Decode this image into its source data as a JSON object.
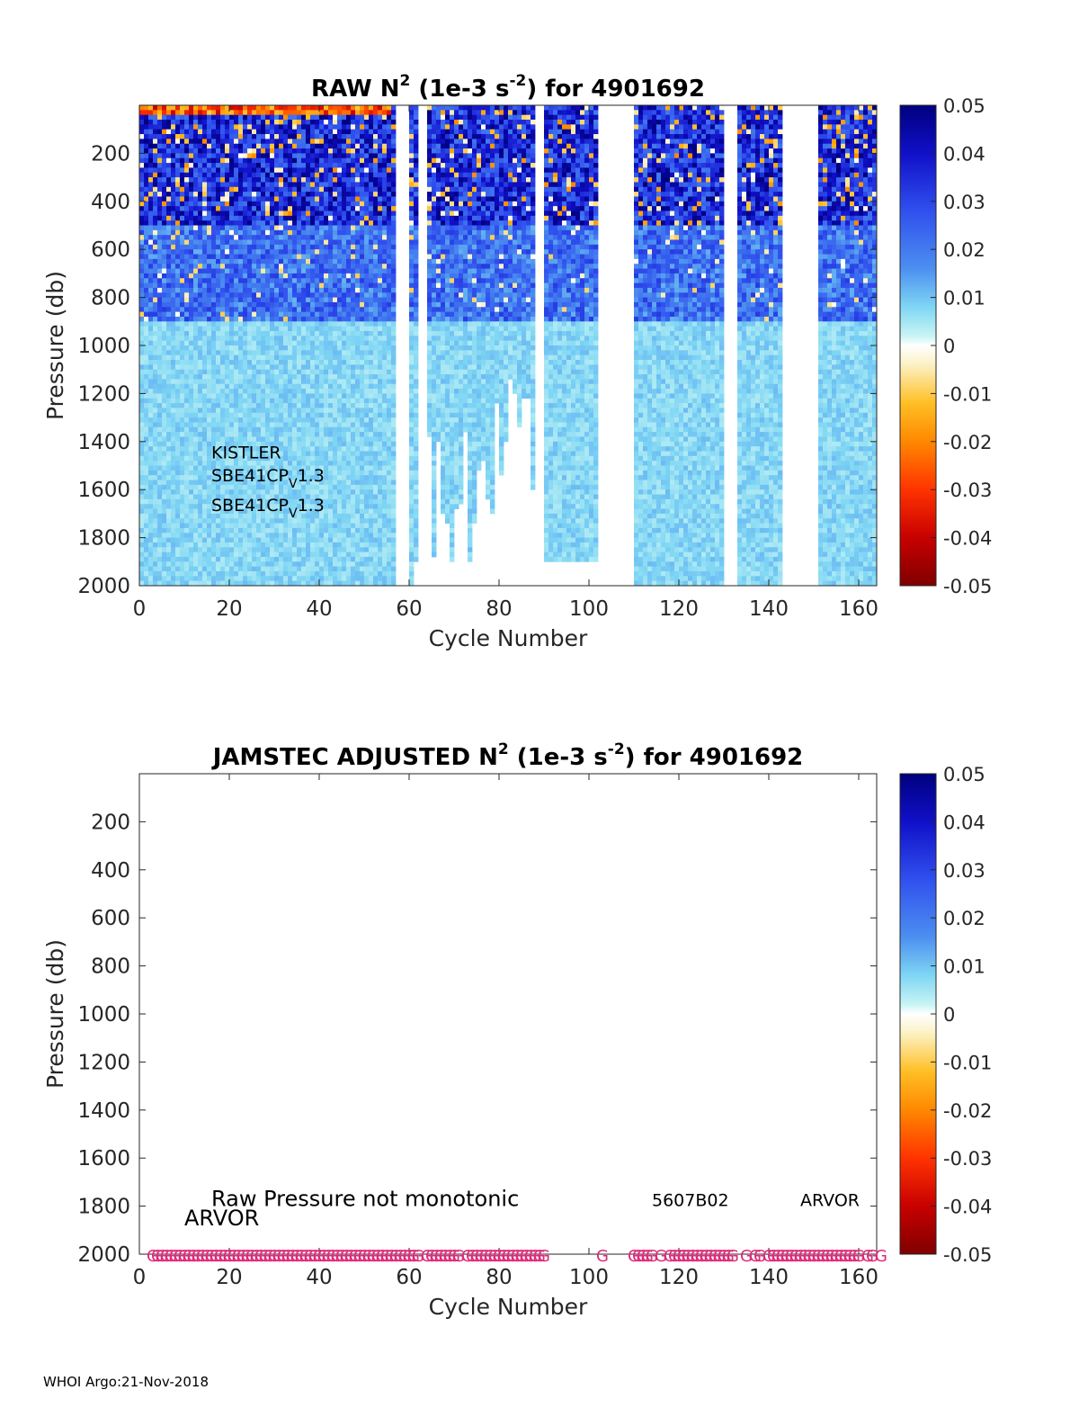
{
  "footer": "WHOI Argo:21-Nov-2018",
  "colorbar": {
    "ticks": [
      "0.05",
      "0.04",
      "0.03",
      "0.02",
      "0.01",
      "0",
      "-0.01",
      "-0.02",
      "-0.03",
      "-0.04",
      "-0.05"
    ],
    "range": [
      -0.05,
      0.05
    ]
  },
  "chart_data": [
    {
      "type": "heatmap",
      "title_main": "RAW N",
      "title_sup1": "2",
      "title_mid": " (1e-3 s",
      "title_sup2": "-2",
      "title_end": ") for 4901692",
      "xlabel": "Cycle Number",
      "ylabel": "Pressure (db)",
      "xlim": [
        0,
        164
      ],
      "ylim": [
        2000,
        0
      ],
      "xticks": [
        "0",
        "20",
        "40",
        "60",
        "80",
        "100",
        "120",
        "140",
        "160"
      ],
      "yticks": [
        "200",
        "400",
        "600",
        "800",
        "1000",
        "1200",
        "1400",
        "1600",
        "1800",
        "2000"
      ],
      "annotations": [
        {
          "text": "KISTLER",
          "x": 16,
          "y": 1470
        },
        {
          "text": "SBE41CP",
          "sub": "V",
          "tail": "1.3",
          "x": 16,
          "y": 1565
        },
        {
          "text": "SBE41CP",
          "sub": "V",
          "tail": "1.3",
          "x": 16,
          "y": 1690
        }
      ],
      "profile_gaps_cycles": [
        [
          57,
          60
        ],
        [
          62,
          64
        ],
        [
          88,
          90
        ],
        [
          102,
          110
        ],
        [
          130,
          133
        ],
        [
          143,
          151
        ]
      ],
      "surface_mixed_layer": "positive values mostly 0.02-0.05 above 600 db, near 0.005-0.01 below 1000 db"
    },
    {
      "type": "heatmap",
      "title_main": "JAMSTEC  ADJUSTED N",
      "title_sup1": "2",
      "title_mid": " (1e-3 s",
      "title_sup2": "-2",
      "title_end": ") for 4901692",
      "xlabel": "Cycle Number",
      "ylabel": "Pressure (db)",
      "xlim": [
        0,
        164
      ],
      "ylim": [
        2000,
        0
      ],
      "xticks": [
        "0",
        "20",
        "40",
        "60",
        "80",
        "100",
        "120",
        "140",
        "160"
      ],
      "yticks": [
        "200",
        "400",
        "600",
        "800",
        "1000",
        "1200",
        "1400",
        "1600",
        "1800",
        "2000"
      ],
      "annotations": [
        {
          "text": "Raw Pressure not monotonic",
          "x": 16,
          "y": 1800,
          "size": 24
        },
        {
          "text": "ARVOR",
          "x": 10,
          "y": 1880,
          "size": 24
        },
        {
          "text": "5607B02",
          "x": 114,
          "y": 1800,
          "size": 19
        },
        {
          "text": "ARVOR",
          "x": 147,
          "y": 1800,
          "size": 19
        }
      ],
      "g_marker_text": "G",
      "g_marker_cycles": [
        3,
        4,
        5,
        6,
        7,
        8,
        9,
        10,
        11,
        12,
        13,
        14,
        15,
        16,
        17,
        18,
        19,
        20,
        21,
        22,
        23,
        24,
        25,
        26,
        27,
        28,
        29,
        30,
        31,
        32,
        33,
        34,
        35,
        36,
        37,
        38,
        39,
        40,
        41,
        42,
        43,
        44,
        45,
        46,
        47,
        48,
        49,
        50,
        51,
        52,
        53,
        54,
        55,
        56,
        57,
        58,
        59,
        60,
        61,
        62,
        64,
        65,
        66,
        67,
        68,
        69,
        70,
        71,
        73,
        74,
        75,
        76,
        77,
        78,
        79,
        80,
        81,
        82,
        83,
        84,
        85,
        86,
        87,
        88,
        89,
        90,
        103,
        110,
        111,
        112,
        113,
        114,
        116,
        118,
        119,
        120,
        121,
        122,
        123,
        124,
        125,
        126,
        127,
        128,
        129,
        130,
        131,
        132,
        135,
        137,
        138,
        140,
        141,
        142,
        143,
        144,
        145,
        146,
        147,
        148,
        149,
        150,
        151,
        152,
        153,
        154,
        155,
        156,
        157,
        158,
        159,
        160,
        162,
        163,
        165
      ]
    }
  ]
}
